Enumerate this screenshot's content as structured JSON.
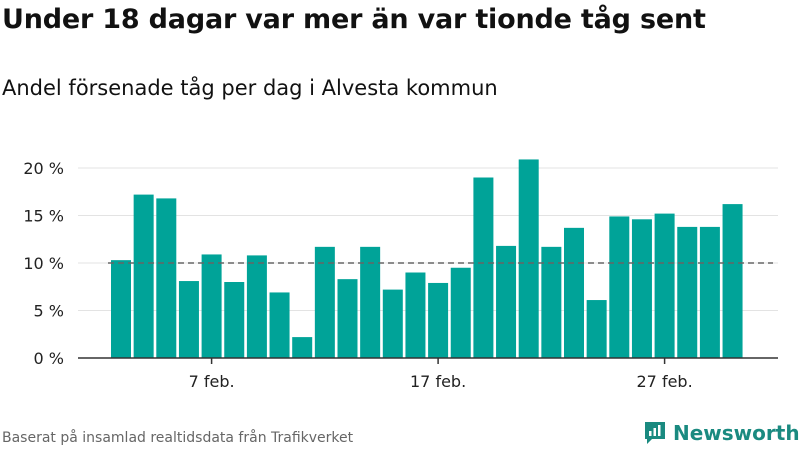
{
  "title": "Under 18 dagar var mer än var tionde tåg sent",
  "subtitle": "Andel försenade tåg per dag i Alvesta kommun",
  "source": "Baserat på insamlad realtidsdata från Trafikverket",
  "brand": "Newsworthy",
  "colors": {
    "bar": "#00a398",
    "reference": "#666666",
    "brand": "#1a8a80"
  },
  "chart_data": {
    "type": "bar",
    "title": "Under 18 dagar var mer än var tionde tåg sent",
    "subtitle": "Andel försenade tåg per dag i Alvesta kommun",
    "xlabel": "",
    "ylabel": "",
    "x_ticks": [
      {
        "label": "7 feb.",
        "index": 4
      },
      {
        "label": "17 feb.",
        "index": 14
      },
      {
        "label": "27 feb.",
        "index": 24
      }
    ],
    "y_ticks": [
      {
        "label": "0 %",
        "value": 0
      },
      {
        "label": "5 %",
        "value": 5
      },
      {
        "label": "10 %",
        "value": 10
      },
      {
        "label": "15 %",
        "value": 15
      },
      {
        "label": "20 %",
        "value": 20
      }
    ],
    "ylim": [
      0,
      21
    ],
    "grid": true,
    "reference_line": 10,
    "categories": [
      "3 feb.",
      "4 feb.",
      "5 feb.",
      "6 feb.",
      "7 feb.",
      "8 feb.",
      "9 feb.",
      "10 feb.",
      "11 feb.",
      "12 feb.",
      "13 feb.",
      "14 feb.",
      "15 feb.",
      "16 feb.",
      "17 feb.",
      "18 feb.",
      "19 feb.",
      "20 feb.",
      "21 feb.",
      "22 feb.",
      "23 feb.",
      "24 feb.",
      "25 feb.",
      "26 feb.",
      "27 feb.",
      "28 feb.",
      "29 feb.",
      "1 mars"
    ],
    "values": [
      10.3,
      17.2,
      16.8,
      8.1,
      10.9,
      8.0,
      10.8,
      6.9,
      2.2,
      11.7,
      8.3,
      11.7,
      7.2,
      9.0,
      7.9,
      9.5,
      19.0,
      11.8,
      20.9,
      11.7,
      13.7,
      6.1,
      14.9,
      14.6,
      15.2,
      13.8,
      13.8,
      16.2
    ]
  }
}
